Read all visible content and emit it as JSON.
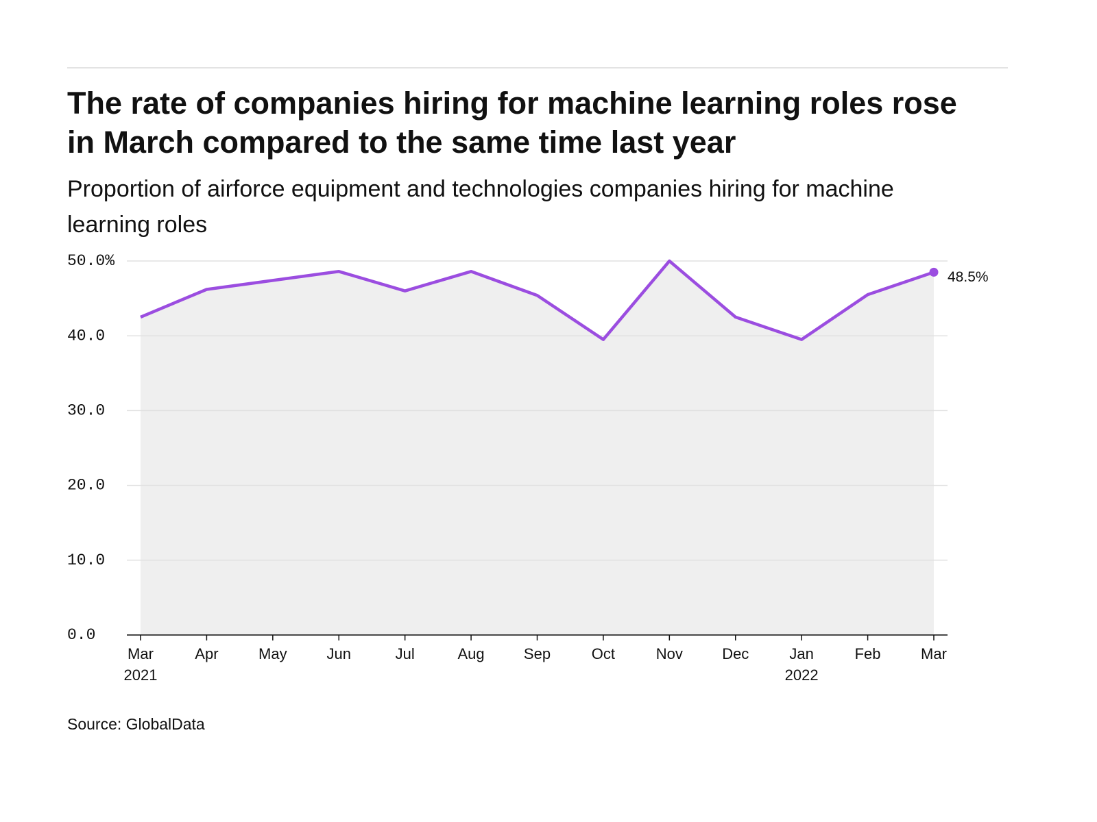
{
  "chart_data": {
    "type": "line",
    "title": "The rate of companies hiring for machine learning roles rose in March compared to the same time last year",
    "subtitle": "Proportion of airforce equipment and technologies companies hiring for machine learning roles",
    "source": "Source: GlobalData",
    "categories": [
      "Mar 2021",
      "Apr",
      "May",
      "Jun",
      "Jul",
      "Aug",
      "Sep",
      "Oct",
      "Nov",
      "Dec",
      "Jan 2022",
      "Feb",
      "Mar"
    ],
    "series": [
      {
        "name": "Proportion of companies hiring for machine learning roles",
        "color": "#9b4de0",
        "values": [
          42.5,
          46.2,
          47.4,
          48.6,
          46.0,
          48.6,
          45.4,
          39.5,
          50.0,
          42.5,
          39.5,
          45.5,
          48.5
        ],
        "value_labels": [
          null,
          null,
          null,
          null,
          null,
          null,
          null,
          null,
          null,
          null,
          null,
          null,
          "48.5%"
        ]
      }
    ],
    "area_color": "#efefef",
    "ylim": [
      0,
      50
    ],
    "yticks": [
      {
        "value": 0,
        "label": "0.0"
      },
      {
        "value": 10,
        "label": "10.0"
      },
      {
        "value": 20,
        "label": "20.0"
      },
      {
        "value": 30,
        "label": "30.0"
      },
      {
        "value": 40,
        "label": "40.0"
      },
      {
        "value": 50,
        "label": "50.0%"
      }
    ],
    "grid": true
  }
}
